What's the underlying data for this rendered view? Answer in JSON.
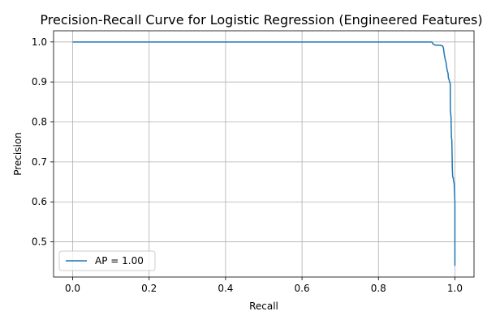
{
  "chart_data": {
    "type": "line",
    "title": "Precision-Recall Curve for Logistic Regression (Engineered Features)",
    "xlabel": "Recall",
    "ylabel": "Precision",
    "xlim": [
      -0.05,
      1.05
    ],
    "ylim": [
      0.412,
      1.028
    ],
    "xticks": [
      0.0,
      0.2,
      0.4,
      0.6,
      0.8,
      1.0
    ],
    "xtick_labels": [
      "0.0",
      "0.2",
      "0.4",
      "0.6",
      "0.8",
      "1.0"
    ],
    "yticks": [
      0.5,
      0.6,
      0.7,
      0.8,
      0.9,
      1.0
    ],
    "ytick_labels": [
      "0.5",
      "0.6",
      "0.7",
      "0.8",
      "0.9",
      "1.0"
    ],
    "grid": true,
    "legend_position": "lower-left",
    "colors": {
      "series": "#1f77b4"
    },
    "series": [
      {
        "name": "AP = 1.00",
        "x": [
          0.0,
          0.94,
          0.942,
          0.946,
          0.95,
          0.96,
          0.968,
          0.97,
          0.972,
          0.975,
          0.977,
          0.978,
          0.98,
          0.982,
          0.983,
          0.985,
          0.986,
          0.988,
          0.988,
          0.989,
          0.99,
          0.99,
          0.991,
          0.992,
          0.993,
          0.993,
          0.994,
          0.995,
          0.996,
          0.996,
          0.997,
          0.998,
          1.0,
          1.0
        ],
        "y": [
          1.0,
          1.0,
          0.996,
          0.993,
          0.992,
          0.992,
          0.99,
          0.985,
          0.97,
          0.955,
          0.948,
          0.94,
          0.928,
          0.922,
          0.91,
          0.905,
          0.9,
          0.895,
          0.83,
          0.82,
          0.81,
          0.8,
          0.76,
          0.755,
          0.7,
          0.69,
          0.665,
          0.66,
          0.66,
          0.655,
          0.65,
          0.648,
          0.6,
          0.44
        ]
      }
    ]
  }
}
